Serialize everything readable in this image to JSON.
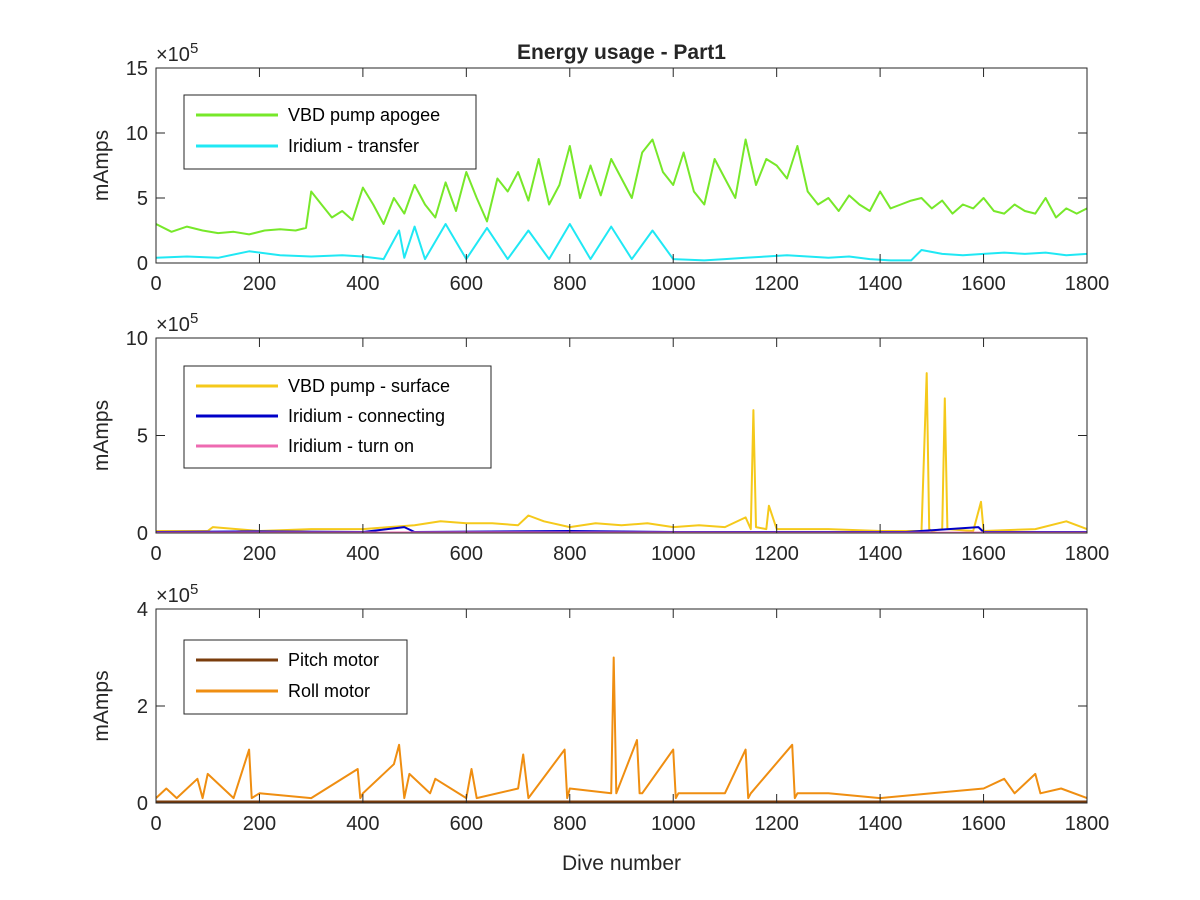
{
  "chart_data": [
    {
      "type": "line",
      "title": "Energy usage - Part1",
      "xlabel": "",
      "ylabel": "mAmps",
      "exponent_base": "×10",
      "exponent_power": "5",
      "xlim": [
        0,
        1800
      ],
      "ylim": [
        0,
        15
      ],
      "xticks": [
        "0",
        "200",
        "400",
        "600",
        "800",
        "1000",
        "1200",
        "1400",
        "1600",
        "1800"
      ],
      "yticks": [
        "0",
        "5",
        "10",
        "15"
      ],
      "legend_position": "top-left",
      "series": [
        {
          "name": "VBD pump apogee",
          "color": "#77e82a",
          "x": [
            0,
            30,
            60,
            90,
            120,
            150,
            180,
            210,
            240,
            270,
            290,
            300,
            320,
            340,
            360,
            380,
            400,
            420,
            440,
            460,
            480,
            500,
            520,
            540,
            560,
            580,
            600,
            620,
            640,
            660,
            680,
            700,
            720,
            740,
            760,
            780,
            800,
            820,
            840,
            860,
            880,
            900,
            920,
            940,
            960,
            980,
            1000,
            1020,
            1040,
            1060,
            1080,
            1100,
            1120,
            1140,
            1160,
            1180,
            1200,
            1220,
            1240,
            1260,
            1280,
            1300,
            1320,
            1340,
            1360,
            1380,
            1400,
            1420,
            1440,
            1460,
            1480,
            1500,
            1520,
            1540,
            1560,
            1580,
            1600,
            1620,
            1640,
            1660,
            1680,
            1700,
            1720,
            1740,
            1760,
            1780,
            1800
          ],
          "y": [
            3.0,
            2.4,
            2.8,
            2.5,
            2.3,
            2.4,
            2.2,
            2.5,
            2.6,
            2.5,
            2.7,
            5.5,
            4.5,
            3.5,
            4.0,
            3.3,
            5.8,
            4.5,
            3.0,
            5.0,
            3.8,
            6.0,
            4.5,
            3.5,
            6.2,
            4.0,
            7.0,
            5.0,
            3.2,
            6.5,
            5.5,
            7.0,
            4.8,
            8.0,
            4.5,
            6.0,
            9.0,
            5.0,
            7.5,
            5.2,
            8.0,
            6.5,
            5.0,
            8.5,
            9.5,
            7.0,
            6.0,
            8.5,
            5.5,
            4.5,
            8.0,
            6.5,
            5.0,
            9.5,
            6.0,
            8.0,
            7.5,
            6.5,
            9.0,
            5.5,
            4.5,
            5.0,
            4.0,
            5.2,
            4.5,
            4.0,
            5.5,
            4.2,
            4.5,
            4.8,
            5.0,
            4.2,
            4.8,
            3.8,
            4.5,
            4.2,
            5.0,
            4.0,
            3.8,
            4.5,
            4.0,
            3.8,
            5.0,
            3.5,
            4.2,
            3.8,
            4.2
          ]
        },
        {
          "name": "Iridium - transfer",
          "color": "#20e8f4",
          "x": [
            0,
            60,
            120,
            180,
            240,
            300,
            360,
            400,
            440,
            470,
            480,
            500,
            520,
            560,
            600,
            640,
            680,
            720,
            760,
            800,
            840,
            880,
            920,
            960,
            1000,
            1060,
            1100,
            1140,
            1180,
            1220,
            1260,
            1300,
            1340,
            1380,
            1420,
            1460,
            1480,
            1520,
            1560,
            1600,
            1640,
            1680,
            1720,
            1760,
            1800
          ],
          "y": [
            0.4,
            0.5,
            0.4,
            0.9,
            0.6,
            0.5,
            0.6,
            0.5,
            0.3,
            2.5,
            0.4,
            2.8,
            0.3,
            3.0,
            0.3,
            2.7,
            0.3,
            2.5,
            0.3,
            3.0,
            0.3,
            2.8,
            0.3,
            2.5,
            0.3,
            0.2,
            0.3,
            0.4,
            0.5,
            0.6,
            0.5,
            0.4,
            0.5,
            0.3,
            0.2,
            0.2,
            1.0,
            0.7,
            0.6,
            0.7,
            0.8,
            0.7,
            0.8,
            0.6,
            0.7
          ]
        }
      ]
    },
    {
      "type": "line",
      "title": "",
      "xlabel": "",
      "ylabel": "mAmps",
      "exponent_base": "×10",
      "exponent_power": "5",
      "xlim": [
        0,
        1800
      ],
      "ylim": [
        0,
        10
      ],
      "xticks": [
        "0",
        "200",
        "400",
        "600",
        "800",
        "1000",
        "1200",
        "1400",
        "1600",
        "1800"
      ],
      "yticks": [
        "0",
        "5",
        "10"
      ],
      "legend_position": "top-left",
      "series": [
        {
          "name": "VBD pump - surface",
          "color": "#f5c91b",
          "x": [
            0,
            100,
            110,
            200,
            300,
            400,
            450,
            500,
            550,
            600,
            650,
            700,
            720,
            750,
            800,
            850,
            900,
            950,
            1000,
            1050,
            1100,
            1140,
            1150,
            1155,
            1160,
            1180,
            1185,
            1200,
            1300,
            1400,
            1480,
            1490,
            1495,
            1500,
            1520,
            1525,
            1530,
            1580,
            1595,
            1600,
            1700,
            1760,
            1800
          ],
          "y": [
            0.1,
            0.1,
            0.3,
            0.1,
            0.2,
            0.2,
            0.3,
            0.4,
            0.6,
            0.5,
            0.5,
            0.4,
            0.9,
            0.6,
            0.3,
            0.5,
            0.4,
            0.5,
            0.3,
            0.4,
            0.3,
            0.8,
            0.2,
            6.3,
            0.3,
            0.2,
            1.4,
            0.2,
            0.2,
            0.1,
            0.1,
            8.2,
            0.2,
            0.1,
            0.2,
            6.9,
            0.2,
            0.1,
            1.6,
            0.1,
            0.2,
            0.6,
            0.2
          ]
        },
        {
          "name": "Iridium - connecting",
          "color": "#0000c8",
          "x": [
            0,
            200,
            400,
            480,
            500,
            800,
            1000,
            1200,
            1450,
            1590,
            1600,
            1800
          ],
          "y": [
            0.05,
            0.08,
            0.05,
            0.3,
            0.05,
            0.1,
            0.05,
            0.05,
            0.05,
            0.3,
            0.05,
            0.05
          ]
        },
        {
          "name": "Iridium - turn on",
          "color": "#ee6ab1",
          "x": [
            0,
            600,
            1200,
            1800
          ],
          "y": [
            0.02,
            0.03,
            0.02,
            0.02
          ]
        }
      ]
    },
    {
      "type": "line",
      "title": "",
      "xlabel": "Dive number",
      "ylabel": "mAmps",
      "exponent_base": "×10",
      "exponent_power": "5",
      "xlim": [
        0,
        1800
      ],
      "ylim": [
        0,
        4
      ],
      "xticks": [
        "0",
        "200",
        "400",
        "600",
        "800",
        "1000",
        "1200",
        "1400",
        "1600",
        "1800"
      ],
      "yticks": [
        "0",
        "2",
        "4"
      ],
      "legend_position": "top-left",
      "series": [
        {
          "name": "Pitch motor",
          "color": "#7a3c0c",
          "x": [
            0,
            300,
            600,
            900,
            1200,
            1500,
            1800
          ],
          "y": [
            0.03,
            0.03,
            0.03,
            0.03,
            0.03,
            0.03,
            0.03
          ]
        },
        {
          "name": "Roll motor",
          "color": "#ef8e11",
          "x": [
            0,
            20,
            40,
            80,
            90,
            100,
            150,
            180,
            185,
            200,
            300,
            390,
            395,
            400,
            460,
            470,
            480,
            490,
            530,
            540,
            600,
            610,
            620,
            700,
            710,
            720,
            790,
            795,
            800,
            880,
            885,
            890,
            930,
            935,
            940,
            1000,
            1005,
            1010,
            1100,
            1140,
            1145,
            1150,
            1230,
            1235,
            1240,
            1300,
            1400,
            1500,
            1600,
            1640,
            1660,
            1700,
            1710,
            1750,
            1800
          ],
          "y": [
            0.1,
            0.3,
            0.1,
            0.5,
            0.1,
            0.6,
            0.1,
            1.1,
            0.1,
            0.2,
            0.1,
            0.7,
            0.1,
            0.2,
            0.8,
            1.2,
            0.1,
            0.6,
            0.2,
            0.5,
            0.1,
            0.7,
            0.1,
            0.3,
            1.0,
            0.1,
            1.1,
            0.1,
            0.3,
            0.2,
            3.0,
            0.2,
            1.3,
            0.2,
            0.2,
            1.1,
            0.1,
            0.2,
            0.2,
            1.1,
            0.1,
            0.2,
            1.2,
            0.1,
            0.2,
            0.2,
            0.1,
            0.2,
            0.3,
            0.5,
            0.2,
            0.6,
            0.2,
            0.3,
            0.1
          ]
        }
      ]
    }
  ]
}
